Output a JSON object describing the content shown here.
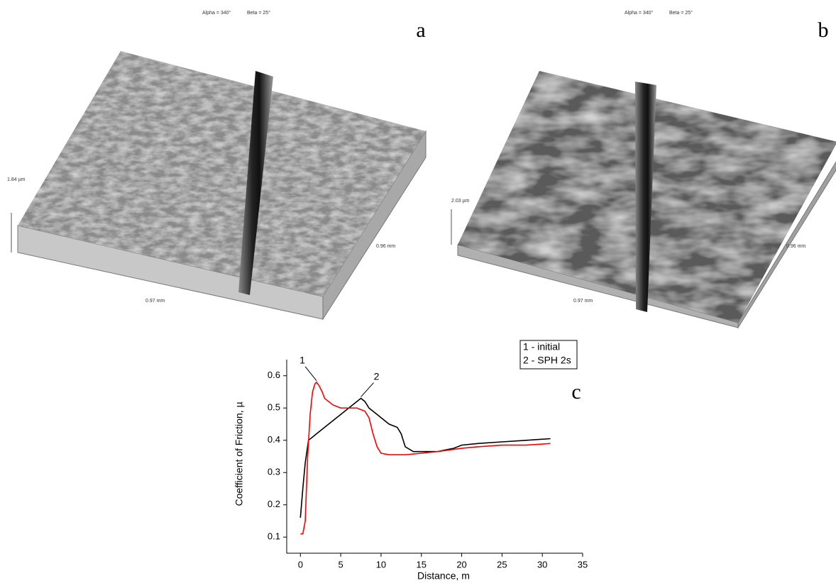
{
  "panels": [
    {
      "alpha": "Alpha = 340°",
      "beta": "Beta = 25°",
      "letter": "a",
      "z_scale": "1.84 µm",
      "y_size": "0.96 mm",
      "x_size": "0.97 mm"
    },
    {
      "alpha": "Alpha = 340°",
      "beta": "Beta = 25°",
      "letter": "b",
      "z_scale": "2.03 µm",
      "y_size": "0.96 mm",
      "x_size": "0.97 mm"
    }
  ],
  "chart_data": {
    "type": "line",
    "letter": "c",
    "x_label": "Distance, m",
    "y_label": "Coefficient of Friction, µ",
    "xlim": [
      -1.7,
      35
    ],
    "xticks": [
      0,
      5,
      10,
      15,
      20,
      25,
      30,
      35
    ],
    "ylim": [
      0.05,
      0.65
    ],
    "yticks": [
      0.1,
      0.2,
      0.3,
      0.4,
      0.5,
      0.6
    ],
    "legend": "above-right",
    "series": [
      {
        "name": "1 - initial",
        "color": "#ff0000",
        "x": [
          0,
          0.3,
          0.6,
          0.9,
          1.2,
          1.5,
          1.8,
          2,
          2.3,
          2.7,
          3,
          4,
          5,
          6,
          7,
          8,
          8.5,
          9,
          9.5,
          10,
          11,
          12,
          13,
          15,
          17,
          20,
          22,
          25,
          28,
          31
        ],
        "values": [
          0.11,
          0.11,
          0.15,
          0.35,
          0.48,
          0.55,
          0.575,
          0.58,
          0.57,
          0.55,
          0.53,
          0.51,
          0.5,
          0.5,
          0.5,
          0.49,
          0.47,
          0.42,
          0.38,
          0.36,
          0.355,
          0.355,
          0.355,
          0.36,
          0.365,
          0.375,
          0.38,
          0.385,
          0.385,
          0.39
        ]
      },
      {
        "name": "2 - SPH 2s",
        "color": "#000000",
        "x": [
          0,
          0.3,
          0.6,
          1,
          1.5,
          2,
          3,
          4,
          5,
          6,
          7,
          7.5,
          8,
          8.5,
          9,
          10,
          11,
          12,
          12.5,
          13,
          14,
          15,
          17,
          19,
          20,
          22,
          25,
          28,
          31
        ],
        "values": [
          0.16,
          0.25,
          0.33,
          0.4,
          0.41,
          0.42,
          0.44,
          0.46,
          0.48,
          0.5,
          0.52,
          0.53,
          0.52,
          0.5,
          0.49,
          0.47,
          0.45,
          0.44,
          0.42,
          0.38,
          0.365,
          0.365,
          0.365,
          0.375,
          0.385,
          0.39,
          0.395,
          0.4,
          0.405
        ]
      }
    ],
    "annotations": [
      {
        "text": "1",
        "x": 2,
        "y": 0.58
      },
      {
        "text": "2",
        "x": 7.5,
        "y": 0.53
      }
    ]
  }
}
